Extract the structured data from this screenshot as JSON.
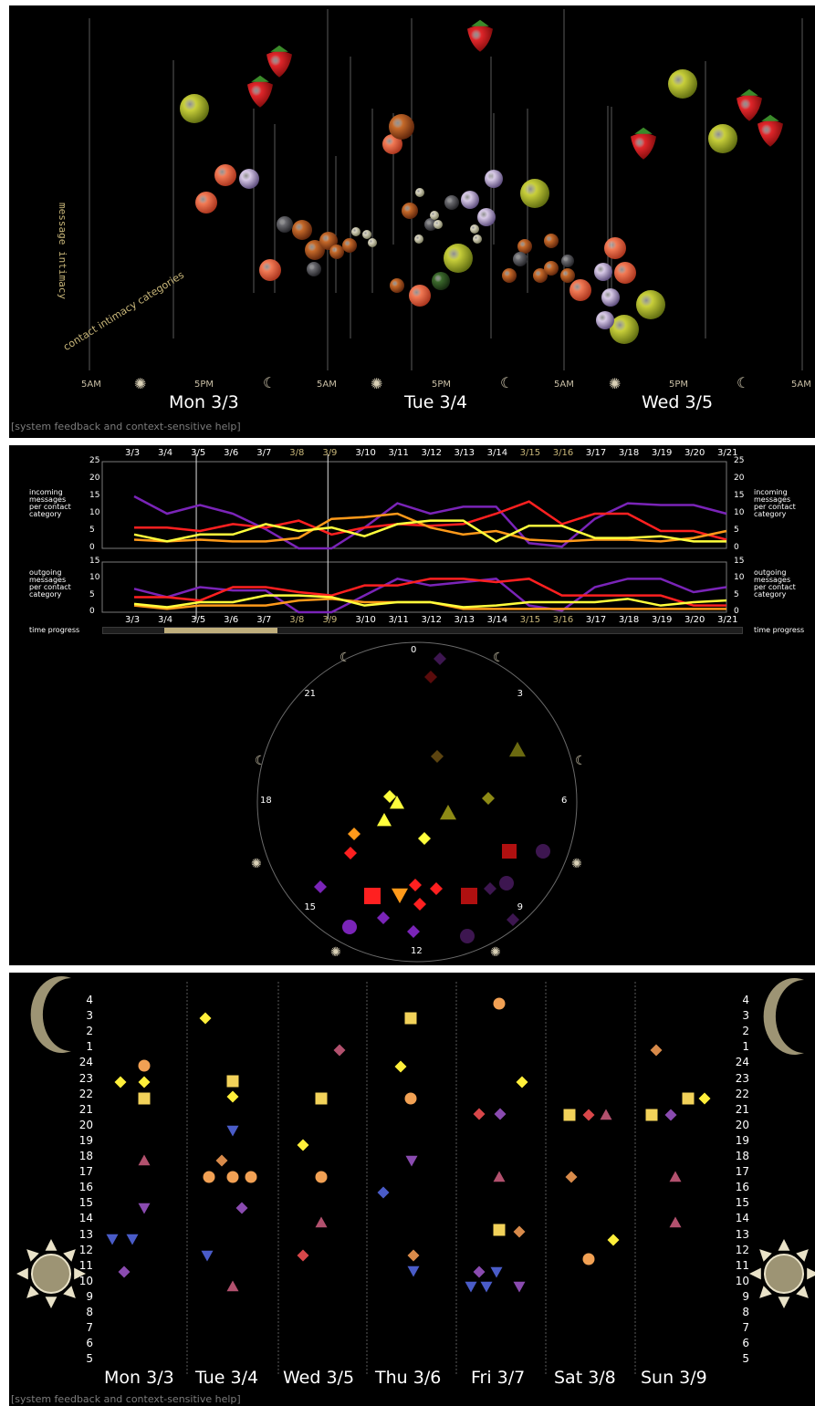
{
  "panel1": {
    "ylabel": "message intimacy",
    "diag_label": "contact intimacy categories",
    "time_ticks": [
      "5AM",
      "5PM",
      "5AM",
      "5PM",
      "5AM",
      "5PM",
      "5AM"
    ],
    "days": [
      "Mon 3/3",
      "Tue 3/4",
      "Wed 3/5"
    ],
    "help": "[system feedback and context-sensitive help]",
    "icon_names": [
      "strawberry",
      "apple",
      "peach",
      "onion",
      "fig",
      "blackberry",
      "sprout",
      "pear",
      "melon",
      "sun",
      "moon"
    ]
  },
  "panel2": {
    "dates": [
      "3/3",
      "3/4",
      "3/5",
      "3/6",
      "3/7",
      "3/8",
      "3/9",
      "3/10",
      "3/11",
      "3/12",
      "3/13",
      "3/14",
      "3/15",
      "3/16",
      "3/17",
      "3/18",
      "3/19",
      "3/20",
      "3/21"
    ],
    "weekend_color": "#c8b679",
    "incoming_label": [
      "incoming",
      "messages",
      "per contact",
      "category"
    ],
    "outgoing_label": [
      "outgoing",
      "messages",
      "per contact",
      "category"
    ],
    "incoming_ticks": [
      "25",
      "20",
      "15",
      "10",
      "5",
      "0"
    ],
    "outgoing_ticks": [
      "15",
      "10",
      "5",
      "0"
    ],
    "time_progress": "time progress",
    "clock_labels": [
      "0",
      "3",
      "6",
      "9",
      "12",
      "15",
      "18",
      "21"
    ],
    "incoming": [
      {
        "name": "purple",
        "color": "#7a24b8",
        "values": [
          15,
          10,
          12.5,
          10,
          5.5,
          0,
          0,
          6,
          13,
          10,
          12,
          12,
          1.5,
          0.5,
          8.5,
          13,
          12.5,
          12.5,
          10
        ]
      },
      {
        "name": "red",
        "color": "#ff2020",
        "values": [
          6,
          6,
          5,
          7,
          6,
          8,
          4,
          6,
          7,
          6.5,
          7,
          10,
          13.5,
          7,
          10,
          10,
          5,
          5,
          2.5
        ]
      },
      {
        "name": "orange",
        "color": "#ff9a1a",
        "values": [
          2.5,
          2,
          2.5,
          2,
          2,
          3,
          8.5,
          9,
          10,
          6,
          4,
          5,
          2.5,
          2,
          2.5,
          2.5,
          2,
          3,
          5
        ]
      },
      {
        "name": "yellow",
        "color": "#ffff3c",
        "values": [
          4,
          2,
          4,
          4,
          7,
          5,
          6,
          3.5,
          7,
          8,
          8,
          2,
          6.5,
          6.5,
          3,
          3,
          3.5,
          2,
          2
        ]
      }
    ],
    "outgoing": [
      {
        "name": "purple",
        "color": "#7a24b8",
        "values": [
          7,
          4.5,
          7.5,
          6.5,
          6.5,
          0,
          0,
          5,
          10,
          8,
          9,
          10,
          2,
          0.5,
          7.5,
          10,
          10,
          6,
          7.5
        ]
      },
      {
        "name": "red",
        "color": "#ff2020",
        "values": [
          4.5,
          4.5,
          3.5,
          7.5,
          7.5,
          6,
          5,
          8,
          8,
          10,
          10,
          9,
          10,
          5,
          5,
          5,
          5,
          2,
          2
        ]
      },
      {
        "name": "orange",
        "color": "#ff9a1a",
        "values": [
          2,
          1,
          2,
          2,
          2,
          3.5,
          4,
          3,
          3,
          3,
          1,
          1,
          1,
          1,
          1,
          1,
          1,
          1,
          1
        ]
      },
      {
        "name": "yellow",
        "color": "#ffff3c",
        "values": [
          2.5,
          1.5,
          3,
          3,
          5,
          5,
          4.5,
          2,
          3,
          3,
          1.5,
          2,
          3,
          3,
          3,
          4,
          2,
          3,
          3.5
        ]
      }
    ]
  },
  "panel3": {
    "hours": [
      "4",
      "3",
      "2",
      "1",
      "24",
      "23",
      "22",
      "21",
      "20",
      "19",
      "18",
      "17",
      "16",
      "15",
      "14",
      "13",
      "12",
      "11",
      "10",
      "9",
      "8",
      "7",
      "6",
      "5"
    ],
    "days": [
      "Mon 3/3",
      "Tue 3/4",
      "Wed 3/5",
      "Thu 3/6",
      "Fri 3/7",
      "Sat 3/8",
      "Sun 3/9"
    ],
    "help": "[system feedback and context-sensitive help]"
  }
}
